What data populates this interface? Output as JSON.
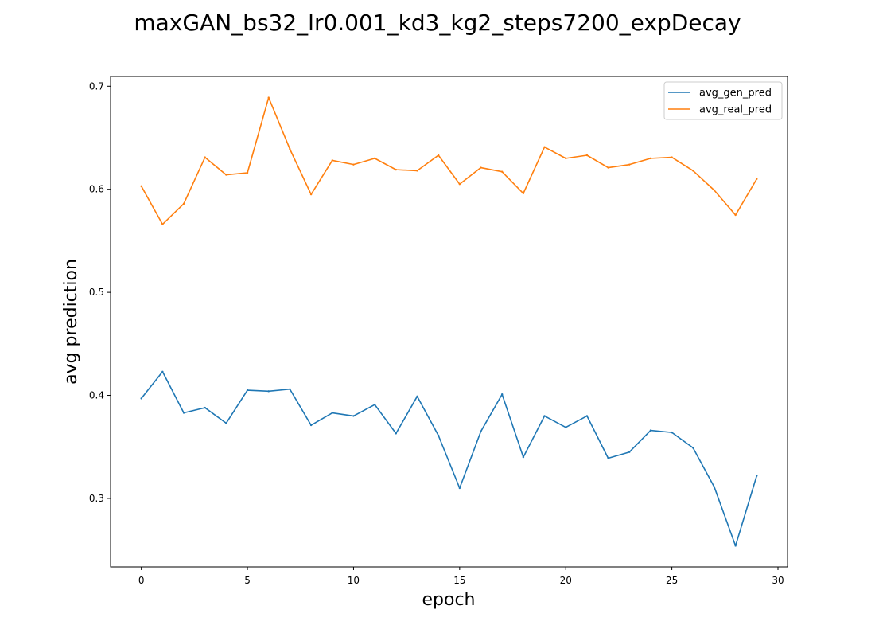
{
  "chart_data": {
    "type": "line",
    "title": "maxGAN_bs32_lr0.001_kd3_kg2_steps7200_expDecay",
    "xlabel": "epoch",
    "ylabel": "avg prediction",
    "xlim": [
      -1.45,
      30.45
    ],
    "ylim": [
      0.2335,
      0.7095
    ],
    "x_ticks": [
      0,
      5,
      10,
      15,
      20,
      25,
      30
    ],
    "x_tick_labels": [
      "0",
      "5",
      "10",
      "15",
      "20",
      "25",
      "30"
    ],
    "y_ticks": [
      0.3,
      0.4,
      0.5,
      0.6,
      0.7
    ],
    "y_tick_labels": [
      "0.3",
      "0.4",
      "0.5",
      "0.6",
      "0.7"
    ],
    "grid": false,
    "legend_position": "top-right",
    "x": [
      0,
      1,
      2,
      3,
      4,
      5,
      6,
      7,
      8,
      9,
      10,
      11,
      12,
      13,
      14,
      15,
      16,
      17,
      18,
      19,
      20,
      21,
      22,
      23,
      24,
      25,
      26,
      27,
      28,
      29
    ],
    "series": [
      {
        "name": "avg_gen_pred",
        "color": "#1f77b4",
        "values": [
          0.397,
          0.423,
          0.383,
          0.388,
          0.373,
          0.405,
          0.404,
          0.406,
          0.371,
          0.383,
          0.38,
          0.391,
          0.363,
          0.399,
          0.361,
          0.31,
          0.365,
          0.401,
          0.34,
          0.38,
          0.369,
          0.38,
          0.339,
          0.345,
          0.366,
          0.364,
          0.349,
          0.311,
          0.254,
          0.322
        ]
      },
      {
        "name": "avg_real_pred",
        "color": "#ff7f0e",
        "values": [
          0.603,
          0.566,
          0.586,
          0.631,
          0.614,
          0.616,
          0.689,
          0.639,
          0.595,
          0.628,
          0.624,
          0.63,
          0.619,
          0.618,
          0.633,
          0.605,
          0.621,
          0.617,
          0.596,
          0.641,
          0.63,
          0.633,
          0.621,
          0.624,
          0.63,
          0.631,
          0.618,
          0.599,
          0.575,
          0.61
        ]
      }
    ]
  }
}
